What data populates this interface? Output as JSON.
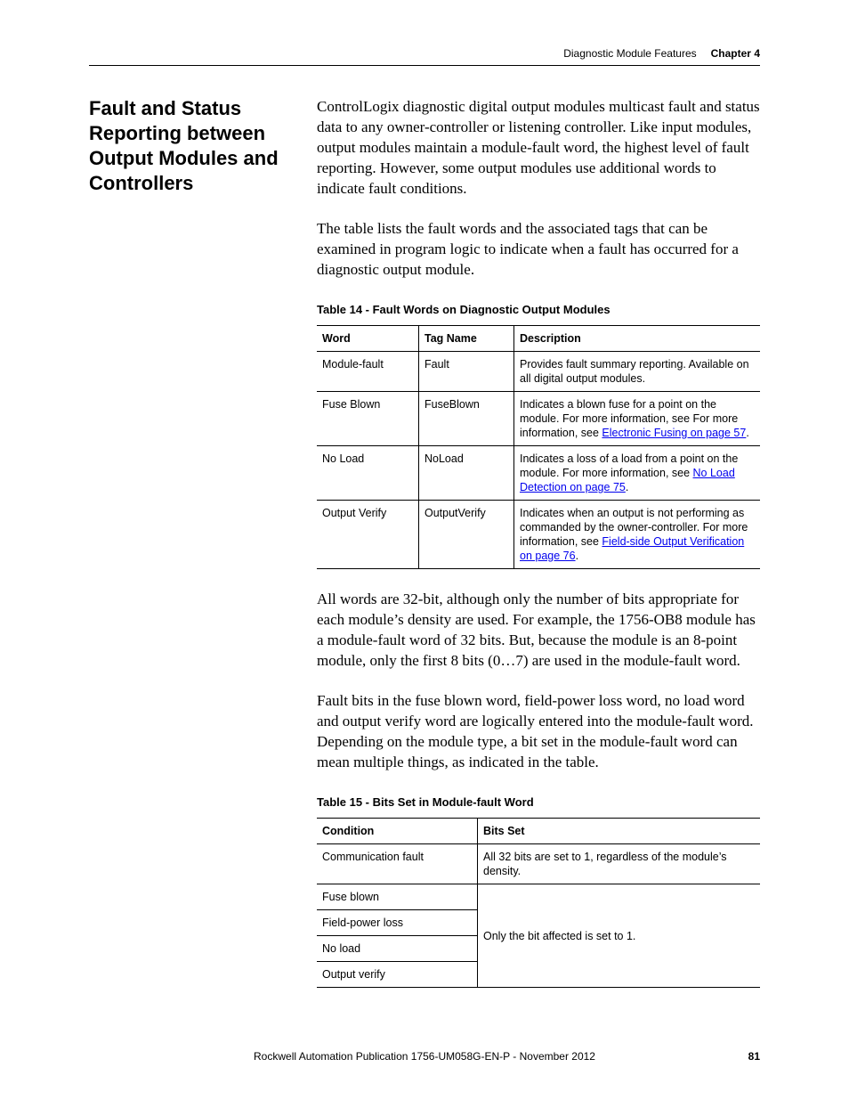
{
  "header": {
    "section": "Diagnostic Module Features",
    "chapter": "Chapter 4"
  },
  "side_heading": "Fault and Status Reporting between Output Modules and Controllers",
  "para1": "ControlLogix diagnostic digital output modules multicast fault and status data to any owner-controller or listening controller. Like input modules, output modules maintain a module-fault word, the highest level of fault reporting. However, some output modules use additional words to indicate fault conditions.",
  "para2": "The table lists the fault words and the associated tags that can be examined in program logic to indicate when a fault has occurred for a diagnostic output module.",
  "table14": {
    "caption": "Table 14 - Fault Words on Diagnostic Output Modules",
    "headers": [
      "Word",
      "Tag Name",
      "Description"
    ],
    "rows": [
      {
        "word": "Module-fault",
        "tag": "Fault",
        "desc_pre": "Provides fault summary reporting. Available on all digital output modules.",
        "link": "",
        "desc_post": ""
      },
      {
        "word": "Fuse Blown",
        "tag": "FuseBlown",
        "desc_pre": "Indicates a blown fuse for a point on the module. For more information, see For more information, see ",
        "link": "Electronic Fusing on page 57",
        "desc_post": "."
      },
      {
        "word": "No Load",
        "tag": "NoLoad",
        "desc_pre": "Indicates a loss of a load from a point on the module. For more information, see ",
        "link": "No Load Detection on page 75",
        "desc_post": "."
      },
      {
        "word": "Output Verify",
        "tag": "OutputVerify",
        "desc_pre": "Indicates when an output is not performing as commanded by the owner-controller. For more information, see ",
        "link": "Field-side Output Verification on page 76",
        "desc_post": "."
      }
    ]
  },
  "para3": "All words are 32-bit, although only the number of bits appropriate for each module’s density are used. For example, the 1756-OB8 module has a module-fault word of 32 bits. But, because the module is an 8-point module, only the first 8 bits (0…7) are used in the module-fault word.",
  "para4": "Fault bits in the fuse blown word, field-power loss word, no load word and output verify word are logically entered into the module-fault word. Depending on the module type, a bit set in the module-fault word can mean multiple things, as indicated in the table.",
  "table15": {
    "caption": "Table 15 - Bits Set in Module-fault Word",
    "headers": [
      "Condition",
      "Bits Set"
    ],
    "row0": {
      "condition": "Communication fault",
      "bits": "All 32 bits are set to 1, regardless of the module’s density."
    },
    "merged_bits": "Only the bit affected is set to 1.",
    "conditions": [
      "Fuse blown",
      "Field-power loss",
      "No load",
      "Output verify"
    ]
  },
  "footer": {
    "publication": "Rockwell Automation Publication 1756-UM058G-EN-P - November 2012",
    "pagenum": "81"
  }
}
